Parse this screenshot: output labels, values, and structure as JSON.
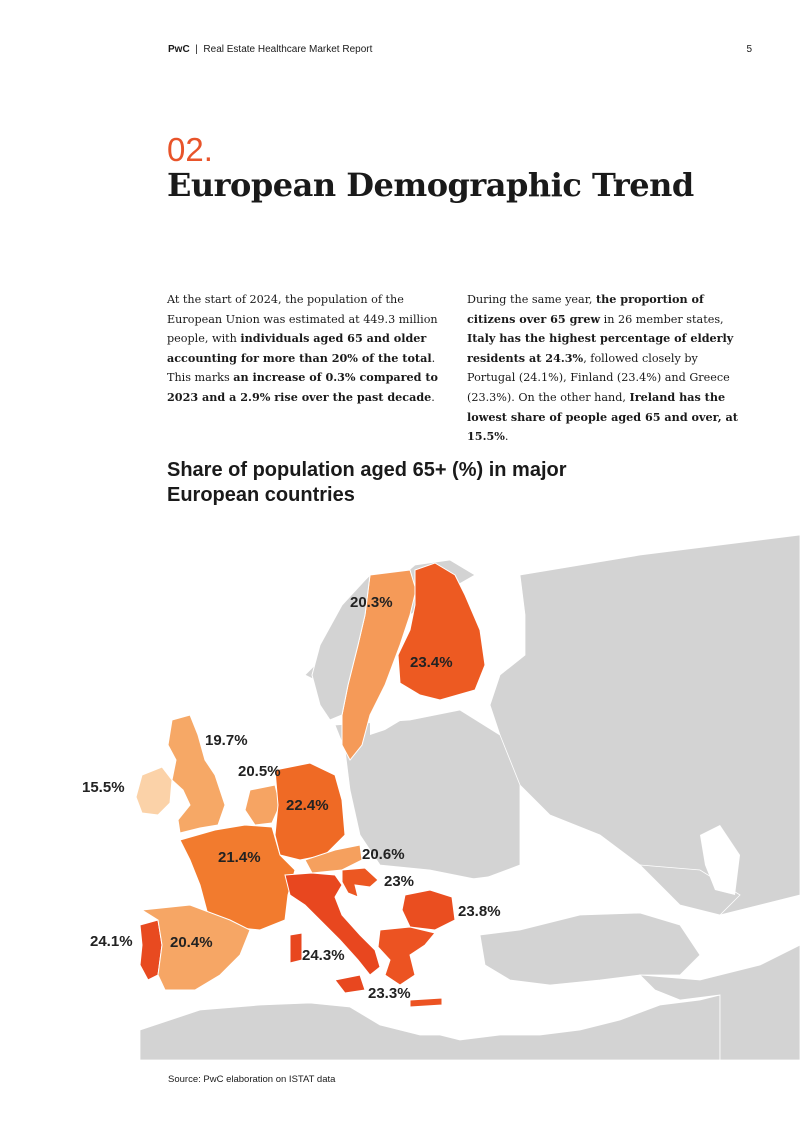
{
  "header": {
    "brand": "PwC",
    "separator": "|",
    "report": "Real Estate Healthcare Market Report",
    "page": "5"
  },
  "section": {
    "number": "02.",
    "title": "European Demographic Trend"
  },
  "body_left": [
    {
      "t": "At the start of 2024, the population of the European Union was estimated at 449.3 million people, with ",
      "b": false
    },
    {
      "t": "individuals aged 65 and older accounting for more than 20% of the total",
      "b": true
    },
    {
      "t": ". This marks ",
      "b": false
    },
    {
      "t": "an increase of 0.3% compared to 2023 and a 2.9% rise over the past decade",
      "b": true
    },
    {
      "t": ".",
      "b": false
    }
  ],
  "body_right": [
    {
      "t": "During the same year, ",
      "b": false
    },
    {
      "t": "the proportion of citizens over 65 grew",
      "b": true
    },
    {
      "t": " in 26 member states, ",
      "b": false
    },
    {
      "t": "Italy has the highest percentage of elderly residents at 24.3%",
      "b": true
    },
    {
      "t": ", followed closely by Portugal (24.1%), Finland (23.4%) and Greece (23.3%). On the other hand, ",
      "b": false
    },
    {
      "t": "Ireland has the lowest share of people aged 65 and over, at 15.5%",
      "b": true
    },
    {
      "t": ".",
      "b": false
    }
  ],
  "chart": {
    "title": "Share of population aged 65+ (%) in major European countries"
  },
  "chart_data": {
    "type": "choropleth",
    "title": "Share of population aged 65+ (%) in major European countries",
    "unit": "%",
    "values": [
      {
        "label": "20.3%",
        "value": 20.3,
        "color": "#f59a58"
      },
      {
        "label": "23.4%",
        "value": 23.4,
        "color": "#ed5a22"
      },
      {
        "label": "19.7%",
        "value": 19.7,
        "color": "#f6a866"
      },
      {
        "label": "15.5%",
        "value": 15.5,
        "color": "#fbd2a8"
      },
      {
        "label": "20.5%",
        "value": 20.5,
        "color": "#f6a463"
      },
      {
        "label": "22.4%",
        "value": 22.4,
        "color": "#ef6a25"
      },
      {
        "label": "21.4%",
        "value": 21.4,
        "color": "#f27b2e"
      },
      {
        "label": "20.6%",
        "value": 20.6,
        "color": "#f5a05e"
      },
      {
        "label": "23%",
        "value": 23.0,
        "color": "#ec5722"
      },
      {
        "label": "23.8%",
        "value": 23.8,
        "color": "#ea4e20"
      },
      {
        "label": "24.1%",
        "value": 24.1,
        "color": "#e84a20"
      },
      {
        "label": "20.4%",
        "value": 20.4,
        "color": "#f6a665"
      },
      {
        "label": "24.3%",
        "value": 24.3,
        "color": "#e8471f"
      },
      {
        "label": "23.3%",
        "value": 23.3,
        "color": "#ec5322"
      }
    ]
  },
  "source": "Source: PwC elaboration on ISTAT data",
  "colors": {
    "accent": "#e8542a",
    "land": "#d3d3d3",
    "sea": "#ffffff"
  }
}
